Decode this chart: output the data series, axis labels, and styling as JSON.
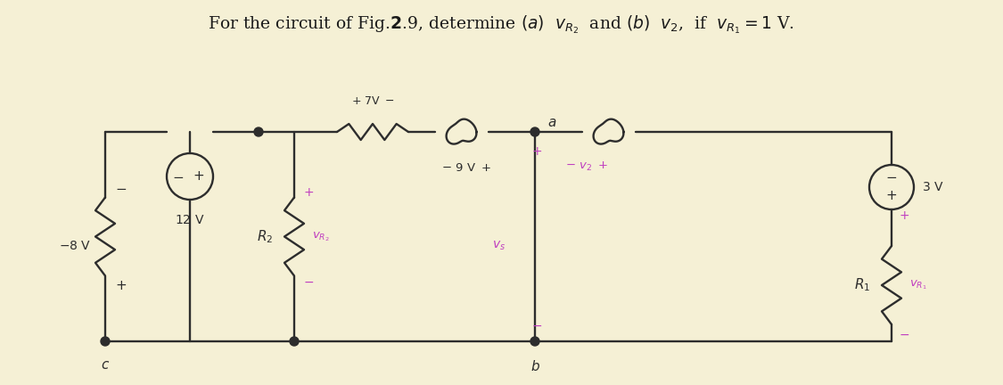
{
  "bg_color": "#f5f0d5",
  "line_color": "#2d2d2d",
  "label_color": "#c040c0",
  "title_color": "#1a1a1a"
}
